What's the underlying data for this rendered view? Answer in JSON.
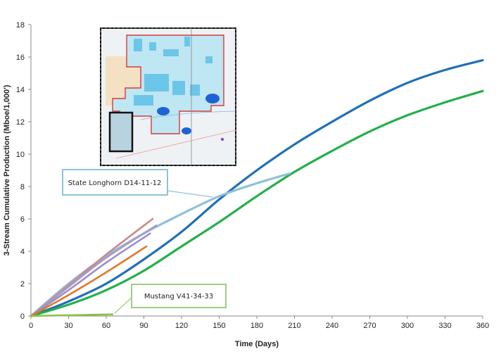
{
  "chart_data": {
    "type": "line",
    "xlabel": "Time (Days)",
    "ylabel": "3-Stream Cumulative Production (Mboe/1,000')",
    "xlim": [
      0,
      360
    ],
    "ylim": [
      0,
      18
    ],
    "x_ticks": [
      0,
      30,
      60,
      90,
      120,
      150,
      180,
      210,
      240,
      270,
      300,
      330,
      360
    ],
    "y_ticks": [
      0,
      2,
      4,
      6,
      8,
      10,
      12,
      14,
      16,
      18
    ],
    "grid": false,
    "series": [
      {
        "color": "#1f6fb8",
        "x": [
          0,
          30,
          60,
          90,
          120,
          150,
          180,
          210,
          240,
          270,
          300,
          330,
          360
        ],
        "y": [
          0,
          0.9,
          2.0,
          3.5,
          5.2,
          7.2,
          9.0,
          10.6,
          12.0,
          13.3,
          14.4,
          15.2,
          15.8
        ]
      },
      {
        "color": "#22b04a",
        "x": [
          0,
          30,
          60,
          90,
          120,
          150,
          180,
          210,
          240,
          270,
          300,
          330,
          360
        ],
        "y": [
          0,
          0.7,
          1.6,
          2.8,
          4.3,
          5.8,
          7.4,
          8.9,
          10.2,
          11.4,
          12.4,
          13.2,
          13.9
        ]
      },
      {
        "color": "#8fc0d8",
        "x": [
          0,
          30,
          60,
          90,
          120,
          150,
          180,
          206
        ],
        "y": [
          0,
          2.0,
          3.7,
          5.1,
          6.3,
          7.4,
          8.2,
          8.8
        ]
      },
      {
        "color": "#c98a8a",
        "x": [
          0,
          30,
          60,
          97
        ],
        "y": [
          0,
          1.9,
          3.8,
          6.0
        ]
      },
      {
        "color": "#a79bc9",
        "x": [
          0,
          30,
          60,
          100
        ],
        "y": [
          0,
          1.8,
          3.6,
          5.6
        ]
      },
      {
        "color": "#9c8fc7",
        "x": [
          0,
          30,
          60,
          95
        ],
        "y": [
          0,
          1.6,
          3.3,
          5.1
        ]
      },
      {
        "color": "#e07a2a",
        "x": [
          0,
          30,
          60,
          92
        ],
        "y": [
          0,
          1.3,
          2.7,
          4.3
        ]
      },
      {
        "color": "#8bc34a",
        "x": [
          0,
          30,
          65
        ],
        "y": [
          0,
          0.05,
          0.1
        ]
      }
    ],
    "annotations": [
      {
        "text": "State Longhorn D14-11-12",
        "border": "#8ec3d4"
      },
      {
        "text": "Mustang V41-34-33",
        "border": "#9fcf80"
      }
    ]
  }
}
